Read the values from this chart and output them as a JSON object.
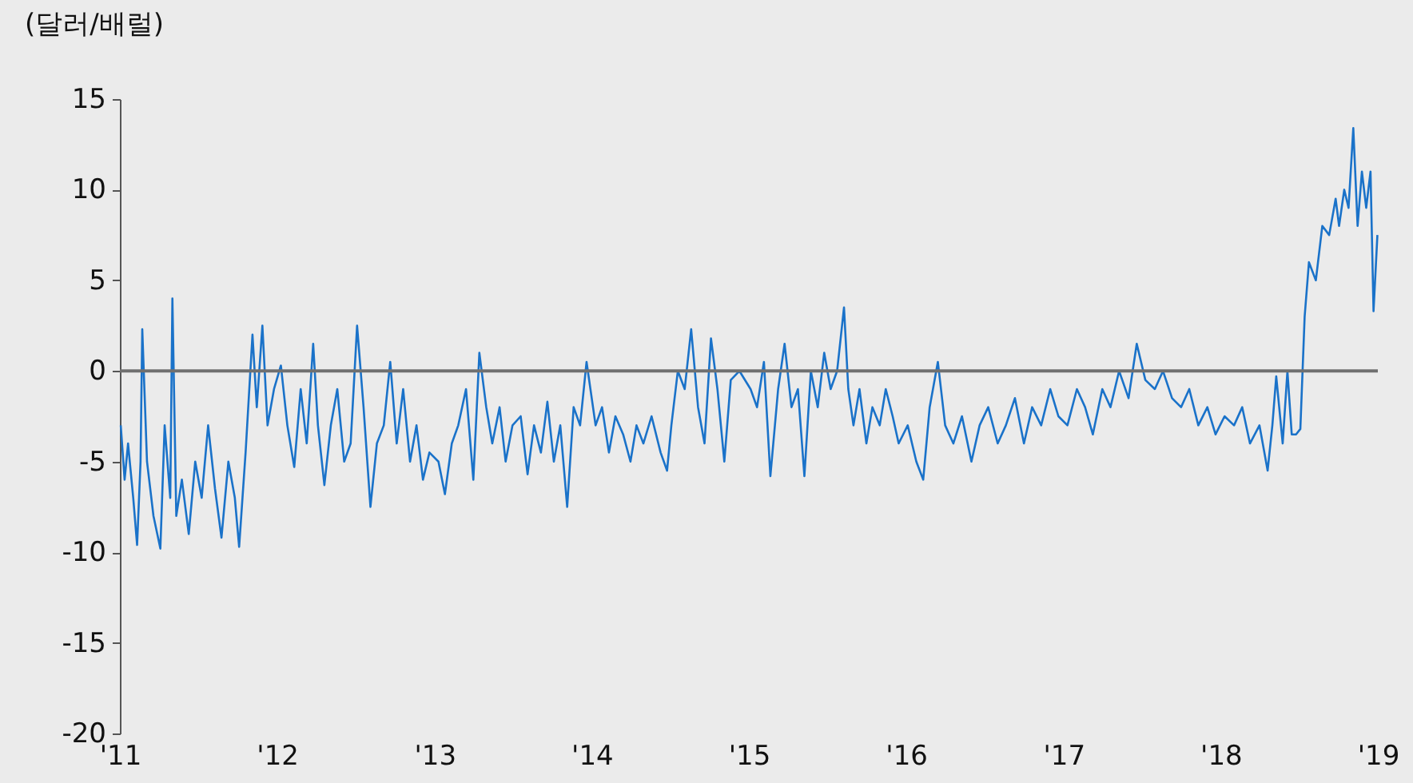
{
  "chart_data": {
    "type": "line",
    "ylabel": "(달러/배럴)",
    "x": [
      "2011-01-03",
      "2011-01-12",
      "2011-01-20",
      "2011-02-01",
      "2011-02-10",
      "2011-02-18",
      "2011-02-22",
      "2011-03-05",
      "2011-03-20",
      "2011-04-05",
      "2011-04-15",
      "2011-04-28",
      "2011-05-03",
      "2011-05-12",
      "2011-05-25",
      "2011-06-10",
      "2011-06-25",
      "2011-07-10",
      "2011-07-25",
      "2011-08-10",
      "2011-08-25",
      "2011-09-10",
      "2011-09-25",
      "2011-10-05",
      "2011-10-20",
      "2011-11-05",
      "2011-11-15",
      "2011-11-28",
      "2011-12-10",
      "2011-12-25",
      "2012-01-10",
      "2012-01-25",
      "2012-02-10",
      "2012-02-25",
      "2012-03-10",
      "2012-03-25",
      "2012-04-05",
      "2012-04-20",
      "2012-05-05",
      "2012-05-20",
      "2012-06-05",
      "2012-06-20",
      "2012-07-05",
      "2012-07-20",
      "2012-08-05",
      "2012-08-20",
      "2012-09-05",
      "2012-09-20",
      "2012-10-05",
      "2012-10-20",
      "2012-11-05",
      "2012-11-20",
      "2012-12-05",
      "2012-12-20",
      "2013-01-10",
      "2013-01-25",
      "2013-02-10",
      "2013-02-25",
      "2013-03-15",
      "2013-04-01",
      "2013-04-15",
      "2013-05-01",
      "2013-05-15",
      "2013-06-01",
      "2013-06-15",
      "2013-07-01",
      "2013-07-20",
      "2013-08-05",
      "2013-08-20",
      "2013-09-05",
      "2013-09-20",
      "2013-10-05",
      "2013-10-20",
      "2013-11-05",
      "2013-11-20",
      "2013-12-05",
      "2013-12-20",
      "2014-01-10",
      "2014-01-25",
      "2014-02-10",
      "2014-02-25",
      "2014-03-15",
      "2014-04-01",
      "2014-04-15",
      "2014-05-01",
      "2014-05-20",
      "2014-06-10",
      "2014-06-25",
      "2014-07-05",
      "2014-07-20",
      "2014-08-05",
      "2014-08-20",
      "2014-09-05",
      "2014-09-20",
      "2014-10-05",
      "2014-10-20",
      "2014-11-05",
      "2014-11-20",
      "2014-12-10",
      "2015-01-05",
      "2015-01-20",
      "2015-02-05",
      "2015-02-20",
      "2015-03-10",
      "2015-03-25",
      "2015-04-10",
      "2015-04-25",
      "2015-05-10",
      "2015-05-25",
      "2015-06-10",
      "2015-06-25",
      "2015-07-10",
      "2015-07-25",
      "2015-08-10",
      "2015-08-20",
      "2015-09-01",
      "2015-09-15",
      "2015-10-01",
      "2015-10-15",
      "2015-11-01",
      "2015-11-15",
      "2015-12-01",
      "2015-12-15",
      "2016-01-05",
      "2016-01-25",
      "2016-02-10",
      "2016-02-25",
      "2016-03-15",
      "2016-04-01",
      "2016-04-20",
      "2016-05-10",
      "2016-06-01",
      "2016-06-20",
      "2016-07-10",
      "2016-08-01",
      "2016-08-20",
      "2016-09-10",
      "2016-10-01",
      "2016-10-20",
      "2016-11-10",
      "2016-12-01",
      "2016-12-20",
      "2017-01-10",
      "2017-02-01",
      "2017-02-20",
      "2017-03-10",
      "2017-04-01",
      "2017-04-20",
      "2017-05-10",
      "2017-06-01",
      "2017-06-20",
      "2017-07-10",
      "2017-08-01",
      "2017-08-20",
      "2017-09-10",
      "2017-10-01",
      "2017-10-20",
      "2017-11-10",
      "2017-12-01",
      "2017-12-20",
      "2018-01-10",
      "2018-02-01",
      "2018-02-20",
      "2018-03-10",
      "2018-04-01",
      "2018-04-20",
      "2018-05-01",
      "2018-05-10",
      "2018-05-25",
      "2018-06-05",
      "2018-06-15",
      "2018-06-25",
      "2018-07-05",
      "2018-07-15",
      "2018-07-25",
      "2018-08-10",
      "2018-08-25",
      "2018-09-10",
      "2018-09-25",
      "2018-10-03",
      "2018-10-15",
      "2018-10-25",
      "2018-11-05",
      "2018-11-15",
      "2018-11-25",
      "2018-12-05",
      "2018-12-15",
      "2018-12-22",
      "2018-12-31"
    ],
    "series": [
      {
        "color": "#1a72c9",
        "values": [
          -3,
          -6,
          -4,
          -7,
          -9.6,
          -5,
          2.3,
          -5,
          -8,
          -9.8,
          -3,
          -7,
          4,
          -8,
          -6,
          -9,
          -5,
          -7,
          -3,
          -6.5,
          -9.2,
          -5,
          -7,
          -9.7,
          -4.5,
          2,
          -2,
          2.5,
          -3,
          -1,
          0.3,
          -3,
          -5.3,
          -1,
          -4,
          1.5,
          -3,
          -6.3,
          -3,
          -1,
          -5,
          -4,
          2.5,
          -2,
          -7.5,
          -4,
          -3,
          0.5,
          -4,
          -1,
          -5,
          -3,
          -6,
          -4.5,
          -5,
          -6.8,
          -4,
          -3,
          -1,
          -6,
          1,
          -2,
          -4,
          -2,
          -5,
          -3,
          -2.5,
          -5.7,
          -3,
          -4.5,
          -1.7,
          -5,
          -3,
          -7.5,
          -2,
          -3,
          0.5,
          -3,
          -2,
          -4.5,
          -2.5,
          -3.5,
          -5,
          -3,
          -4,
          -2.5,
          -4.5,
          -5.5,
          -3,
          0,
          -1,
          2.3,
          -2,
          -4,
          1.8,
          -1,
          -5,
          -0.5,
          0,
          -1,
          -2,
          0.5,
          -5.8,
          -1,
          1.5,
          -2,
          -1,
          -5.8,
          0,
          -2,
          1,
          -1,
          0,
          3.5,
          -1,
          -3,
          -1,
          -4,
          -2,
          -3,
          -1,
          -2.5,
          -4,
          -3,
          -5,
          -6,
          -2,
          0.5,
          -3,
          -4,
          -2.5,
          -5,
          -3,
          -2,
          -4,
          -3,
          -1.5,
          -4,
          -2,
          -3,
          -1,
          -2.5,
          -3,
          -1,
          -2,
          -3.5,
          -1,
          -2,
          0,
          -1.5,
          1.5,
          -0.5,
          -1,
          0,
          -1.5,
          -2,
          -1,
          -3,
          -2,
          -3.5,
          -2.5,
          -3,
          -2,
          -4,
          -3,
          -5.5,
          -3,
          -0.3,
          -4,
          0,
          -3.5,
          -3.5,
          -3.2,
          3,
          6,
          5,
          8,
          7.5,
          9.5,
          8,
          10,
          9,
          13.4,
          8,
          11,
          9,
          11,
          3.3,
          7.5
        ]
      }
    ],
    "xlim": [
      "2011-01-01",
      "2019-01-01"
    ],
    "xticks": [
      {
        "value": "2011-01-01",
        "label": "'11"
      },
      {
        "value": "2012-01-01",
        "label": "'12"
      },
      {
        "value": "2013-01-01",
        "label": "'13"
      },
      {
        "value": "2014-01-01",
        "label": "'14"
      },
      {
        "value": "2015-01-01",
        "label": "'15"
      },
      {
        "value": "2016-01-01",
        "label": "'16"
      },
      {
        "value": "2017-01-01",
        "label": "'17"
      },
      {
        "value": "2018-01-01",
        "label": "'18"
      },
      {
        "value": "2019-01-01",
        "label": "'19"
      }
    ],
    "ylim": [
      -20,
      15
    ],
    "yticks": [
      -20,
      -15,
      -10,
      -5,
      0,
      5,
      10,
      15
    ],
    "ref_lines": [
      {
        "axis": "y",
        "value": 0,
        "color": "#707070"
      }
    ],
    "grid": false,
    "marker": "none",
    "line_style": "solid"
  }
}
